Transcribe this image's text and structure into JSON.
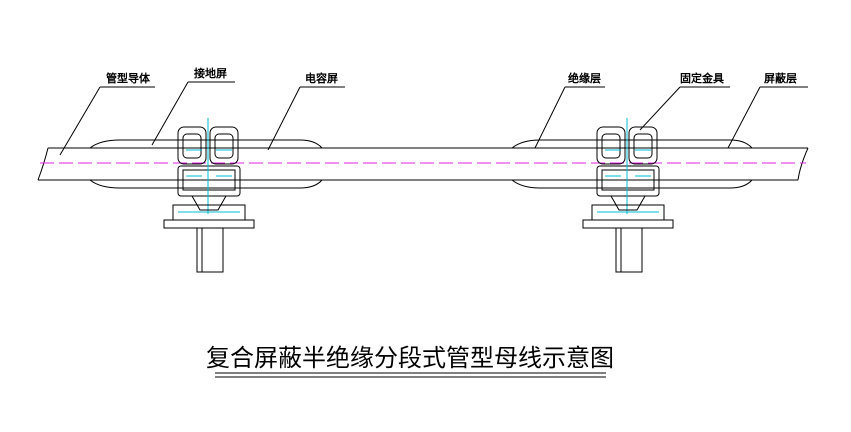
{
  "labels": [
    "管型导体",
    "接地屏",
    "电容屏",
    "绝缘层",
    "固定金具",
    "屏蔽层"
  ],
  "title": "复合屏蔽半绝缘分段式管型母线示意图"
}
